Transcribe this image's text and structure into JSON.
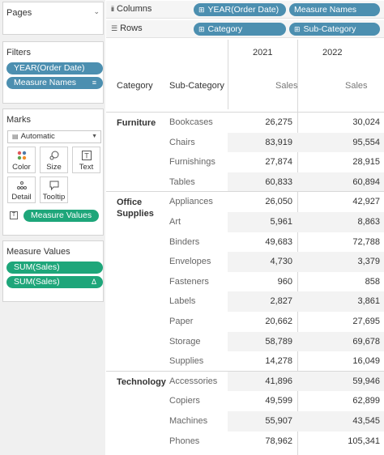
{
  "pages": {
    "title": "Pages"
  },
  "filters": {
    "title": "Filters",
    "items": [
      "YEAR(Order Date)",
      "Measure Names"
    ]
  },
  "marks": {
    "title": "Marks",
    "type": "Automatic",
    "buttons": [
      {
        "label": "Color",
        "icon": "color-dots-icon"
      },
      {
        "label": "Size",
        "icon": "size-icon"
      },
      {
        "label": "Text",
        "icon": "text-icon"
      },
      {
        "label": "Detail",
        "icon": "detail-icon"
      },
      {
        "label": "Tooltip",
        "icon": "tooltip-icon"
      }
    ],
    "text_pill": "Measure Values"
  },
  "measure_values": {
    "title": "Measure Values",
    "items": [
      "SUM(Sales)",
      "SUM(Sales)"
    ],
    "delta": "Δ"
  },
  "columns_shelf": {
    "label": "Columns",
    "pills": [
      "YEAR(Order Date)",
      "Measure Names"
    ]
  },
  "rows_shelf": {
    "label": "Rows",
    "pills": [
      "Category",
      "Sub-Category"
    ]
  },
  "table": {
    "headers": {
      "category": "Category",
      "sub_category": "Sub-Category",
      "year1": "2021",
      "year2": "2022",
      "measure": "Sales"
    },
    "groups": [
      {
        "category": "Furniture",
        "rows": [
          {
            "sub": "Bookcases",
            "v2021": "26,275",
            "v2022": "30,024"
          },
          {
            "sub": "Chairs",
            "v2021": "83,919",
            "v2022": "95,554"
          },
          {
            "sub": "Furnishings",
            "v2021": "27,874",
            "v2022": "28,915"
          },
          {
            "sub": "Tables",
            "v2021": "60,833",
            "v2022": "60,894"
          }
        ]
      },
      {
        "category_line1": "Office",
        "category_line2": "Supplies",
        "rows": [
          {
            "sub": "Appliances",
            "v2021": "26,050",
            "v2022": "42,927"
          },
          {
            "sub": "Art",
            "v2021": "5,961",
            "v2022": "8,863"
          },
          {
            "sub": "Binders",
            "v2021": "49,683",
            "v2022": "72,788"
          },
          {
            "sub": "Envelopes",
            "v2021": "4,730",
            "v2022": "3,379"
          },
          {
            "sub": "Fasteners",
            "v2021": "960",
            "v2022": "858"
          },
          {
            "sub": "Labels",
            "v2021": "2,827",
            "v2022": "3,861"
          },
          {
            "sub": "Paper",
            "v2021": "20,662",
            "v2022": "27,695"
          },
          {
            "sub": "Storage",
            "v2021": "58,789",
            "v2022": "69,678"
          },
          {
            "sub": "Supplies",
            "v2021": "14,278",
            "v2022": "16,049"
          }
        ]
      },
      {
        "category": "Technology",
        "rows": [
          {
            "sub": "Accessories",
            "v2021": "41,896",
            "v2022": "59,946"
          },
          {
            "sub": "Copiers",
            "v2021": "49,599",
            "v2022": "62,899"
          },
          {
            "sub": "Machines",
            "v2021": "55,907",
            "v2022": "43,545"
          },
          {
            "sub": "Phones",
            "v2021": "78,962",
            "v2022": "105,341"
          }
        ]
      }
    ]
  }
}
